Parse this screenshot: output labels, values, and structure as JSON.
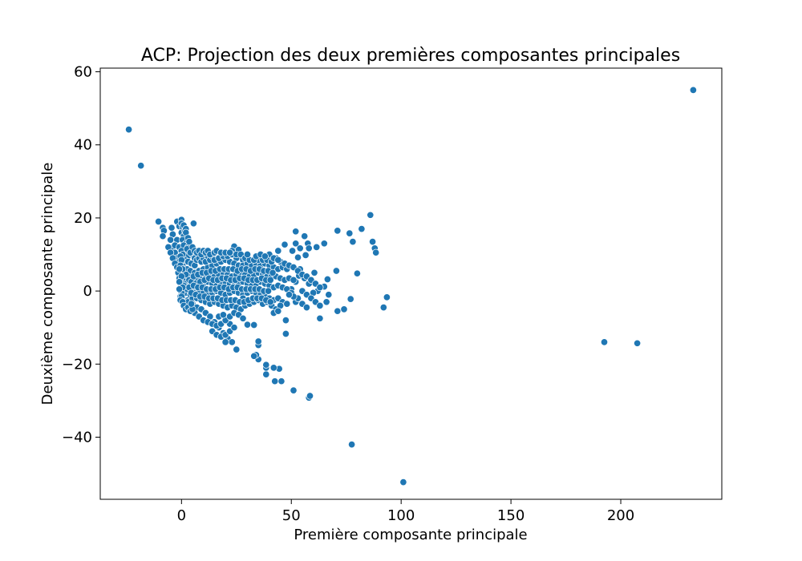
{
  "chart_data": {
    "type": "scatter",
    "title": "ACP: Projection des deux premières composantes principales",
    "xlabel": "Première composante principale",
    "ylabel": "Deuxième composante principale",
    "xlim": [
      -37,
      246
    ],
    "ylim": [
      -57,
      61
    ],
    "xticks": [
      0,
      50,
      100,
      150,
      200
    ],
    "yticks": [
      -40,
      -20,
      0,
      20,
      40,
      60
    ],
    "xtick_labels": [
      "0",
      "50",
      "100",
      "150",
      "200"
    ],
    "ytick_labels": [
      "−40",
      "−20",
      "0",
      "20",
      "40",
      "60"
    ],
    "grid": false,
    "marker_color": "#1f77b4",
    "marker_edge": "#ffffff",
    "points": [
      [
        -24,
        44.2
      ],
      [
        -18.5,
        34.3
      ],
      [
        233,
        55
      ],
      [
        192.5,
        -14
      ],
      [
        207.5,
        -14.3
      ],
      [
        101,
        -52.3
      ],
      [
        77.5,
        -42
      ],
      [
        58,
        -29.2
      ],
      [
        58.5,
        -28.7
      ],
      [
        51,
        -27.2
      ],
      [
        45.5,
        -24.7
      ],
      [
        42.5,
        -24.7
      ],
      [
        44.5,
        -21.3
      ],
      [
        42,
        -21
      ],
      [
        38.5,
        -22.8
      ],
      [
        38.5,
        -21
      ],
      [
        38.5,
        -20.2
      ],
      [
        35,
        -18.7
      ],
      [
        34,
        -17.5
      ],
      [
        33,
        -17.8
      ],
      [
        35,
        -14.8
      ],
      [
        35,
        -13.8
      ],
      [
        33,
        -9.3
      ],
      [
        30,
        -9.2
      ],
      [
        47.5,
        -11.7
      ],
      [
        47.5,
        -8
      ],
      [
        86,
        20.8
      ],
      [
        82,
        17
      ],
      [
        78,
        13.5
      ],
      [
        76.5,
        15.8
      ],
      [
        71,
        16.5
      ],
      [
        87,
        13.5
      ],
      [
        88,
        11.7
      ],
      [
        88.5,
        10.5
      ],
      [
        80,
        4.8
      ],
      [
        52,
        16.3
      ],
      [
        56,
        15
      ],
      [
        52,
        13
      ],
      [
        57.5,
        13
      ],
      [
        58,
        11.7
      ],
      [
        61.5,
        12
      ],
      [
        65,
        13
      ],
      [
        47,
        12.7
      ],
      [
        44,
        11
      ],
      [
        50.5,
        11
      ],
      [
        54,
        11.7
      ],
      [
        56.5,
        9.8
      ],
      [
        53,
        9.2
      ],
      [
        43,
        9
      ],
      [
        40,
        10
      ],
      [
        -10.5,
        19
      ],
      [
        -8.5,
        17.3
      ],
      [
        -8,
        16.5
      ],
      [
        -4.5,
        17.3
      ],
      [
        -4,
        15.5
      ],
      [
        -8.5,
        15
      ],
      [
        -2,
        19
      ],
      [
        -1,
        17.7
      ],
      [
        0,
        19.5
      ],
      [
        5.5,
        18.5
      ],
      [
        24,
        12.2
      ],
      [
        23,
        11
      ],
      [
        26,
        11.3
      ],
      [
        25,
        9
      ],
      [
        28,
        8.5
      ],
      [
        93.5,
        -1.7
      ],
      [
        92,
        -4.5
      ],
      [
        77,
        -2.2
      ],
      [
        74,
        -5
      ],
      [
        71,
        -5.5
      ],
      [
        70.5,
        5.5
      ],
      [
        66.5,
        3.2
      ],
      [
        65,
        1.2
      ],
      [
        67,
        -1
      ],
      [
        66,
        -3
      ],
      [
        63,
        -7.5
      ],
      [
        62,
        0
      ],
      [
        60,
        -0.5
      ],
      [
        58,
        2
      ],
      [
        56,
        3.5
      ],
      [
        60.5,
        5
      ],
      [
        54,
        6
      ],
      [
        53.5,
        4.2
      ],
      [
        52,
        2.5
      ],
      [
        50,
        0.5
      ],
      [
        -5,
        14
      ],
      [
        -4,
        12
      ],
      [
        -3,
        10.5
      ],
      [
        -2,
        9
      ],
      [
        -1,
        8
      ],
      [
        0.5,
        7
      ],
      [
        1,
        6
      ],
      [
        0,
        5
      ],
      [
        -1,
        4
      ],
      [
        0.5,
        3
      ],
      [
        -0.5,
        2
      ],
      [
        0,
        1
      ],
      [
        0.5,
        0
      ],
      [
        1,
        -1
      ],
      [
        0.5,
        -2
      ],
      [
        1.5,
        -3
      ],
      [
        3,
        -2.5
      ],
      [
        5,
        -3.5
      ],
      [
        7,
        -4.5
      ],
      [
        9,
        -5
      ],
      [
        11,
        -6
      ],
      [
        13,
        -7
      ],
      [
        15,
        -8.5
      ],
      [
        17,
        -10
      ],
      [
        19,
        -11.5
      ],
      [
        21,
        -13
      ],
      [
        23,
        -14
      ],
      [
        25,
        -16
      ],
      [
        20,
        -14
      ],
      [
        22,
        -9
      ],
      [
        -2,
        14
      ],
      [
        -3,
        12.5
      ],
      [
        -1,
        12
      ],
      [
        1,
        11
      ],
      [
        2,
        10
      ],
      [
        3,
        9.5
      ],
      [
        1.5,
        8.5
      ],
      [
        3,
        8
      ],
      [
        4.5,
        7.5
      ],
      [
        6,
        7
      ],
      [
        2.5,
        6
      ],
      [
        4,
        5.5
      ],
      [
        6,
        5
      ],
      [
        8,
        5.5
      ],
      [
        10,
        6
      ],
      [
        12,
        6.5
      ],
      [
        14,
        7
      ],
      [
        16,
        7.5
      ],
      [
        18,
        8
      ],
      [
        20,
        8.5
      ],
      [
        22,
        8
      ],
      [
        24,
        7.5
      ],
      [
        26,
        7
      ],
      [
        28,
        7
      ],
      [
        30,
        7.5
      ],
      [
        32,
        7
      ],
      [
        34,
        7.5
      ],
      [
        36,
        7
      ],
      [
        38,
        7.5
      ],
      [
        40,
        7
      ],
      [
        42,
        6.5
      ],
      [
        44,
        6
      ],
      [
        46,
        6.5
      ],
      [
        48,
        6
      ],
      [
        35,
        8.5
      ],
      [
        3,
        4
      ],
      [
        5,
        3.5
      ],
      [
        7,
        3
      ],
      [
        9,
        3.5
      ],
      [
        11,
        4
      ],
      [
        13,
        4.5
      ],
      [
        15,
        4
      ],
      [
        17,
        4.5
      ],
      [
        19,
        5
      ],
      [
        21,
        4.5
      ],
      [
        23,
        4
      ],
      [
        25,
        4.5
      ],
      [
        27,
        5
      ],
      [
        29,
        4.5
      ],
      [
        31,
        4
      ],
      [
        33,
        4.5
      ],
      [
        35,
        5
      ],
      [
        37,
        4.5
      ],
      [
        39,
        4
      ],
      [
        41,
        4.5
      ],
      [
        43,
        4
      ],
      [
        45,
        3.5
      ],
      [
        47,
        3
      ],
      [
        49,
        3.5
      ],
      [
        51,
        3
      ],
      [
        2,
        2
      ],
      [
        4,
        1.5
      ],
      [
        6,
        1
      ],
      [
        8,
        1.5
      ],
      [
        10,
        2
      ],
      [
        12,
        2.5
      ],
      [
        14,
        2
      ],
      [
        16,
        1.5
      ],
      [
        18,
        2
      ],
      [
        20,
        2.5
      ],
      [
        22,
        2
      ],
      [
        24,
        1.5
      ],
      [
        26,
        2
      ],
      [
        28,
        2.5
      ],
      [
        30,
        2
      ],
      [
        32,
        1.5
      ],
      [
        34,
        2
      ],
      [
        36,
        2.5
      ],
      [
        38,
        2
      ],
      [
        40,
        1.5
      ],
      [
        42,
        1
      ],
      [
        44,
        1.5
      ],
      [
        46,
        1
      ],
      [
        48,
        0.5
      ],
      [
        50,
        -0.5
      ],
      [
        2,
        -0.5
      ],
      [
        4,
        -1
      ],
      [
        6,
        -0.5
      ],
      [
        8,
        0
      ],
      [
        10,
        -0.5
      ],
      [
        12,
        -1
      ],
      [
        14,
        -0.5
      ],
      [
        16,
        0
      ],
      [
        18,
        -0.5
      ],
      [
        20,
        -1
      ],
      [
        22,
        -0.5
      ],
      [
        24,
        0
      ],
      [
        26,
        -0.5
      ],
      [
        28,
        -1
      ],
      [
        30,
        -0.5
      ],
      [
        32,
        0
      ],
      [
        34,
        -0.5
      ],
      [
        36,
        -1
      ],
      [
        38,
        -1.5
      ],
      [
        40,
        -2
      ],
      [
        42,
        -2.5
      ],
      [
        44,
        -2
      ],
      [
        46,
        -3
      ],
      [
        48,
        -3.5
      ],
      [
        52,
        -3
      ],
      [
        3,
        -3
      ],
      [
        5,
        -2
      ],
      [
        7,
        -2
      ],
      [
        9,
        -2.5
      ],
      [
        11,
        -3
      ],
      [
        13,
        -3.5
      ],
      [
        15,
        -3
      ],
      [
        17,
        -3.5
      ],
      [
        19,
        -4
      ],
      [
        21,
        -4.5
      ],
      [
        23,
        -4
      ],
      [
        25,
        -4.5
      ],
      [
        27,
        -5
      ],
      [
        29,
        -4
      ],
      [
        31,
        -3.5
      ],
      [
        33,
        -3
      ],
      [
        35,
        -2.5
      ],
      [
        37,
        -3.5
      ],
      [
        39,
        -3
      ],
      [
        41,
        -4
      ],
      [
        43,
        -5
      ],
      [
        45,
        -4
      ],
      [
        42,
        -6
      ],
      [
        44,
        -5.5
      ],
      [
        28,
        -2
      ],
      [
        6,
        -6
      ],
      [
        8,
        -7
      ],
      [
        10,
        -8
      ],
      [
        12,
        -8.5
      ],
      [
        14,
        -9
      ],
      [
        16,
        -9.5
      ],
      [
        18,
        -9
      ],
      [
        20,
        -8
      ],
      [
        22,
        -7
      ],
      [
        24,
        -6
      ],
      [
        26,
        -6.5
      ],
      [
        28,
        -7.5
      ],
      [
        14,
        -11
      ],
      [
        16,
        -12
      ],
      [
        18,
        -12.5
      ],
      [
        20,
        -12
      ],
      [
        22,
        -11
      ],
      [
        24,
        -10
      ],
      [
        17,
        -7
      ],
      [
        19,
        -6.5
      ],
      [
        -6,
        12
      ],
      [
        -5,
        10.5
      ],
      [
        -4,
        9
      ],
      [
        -3,
        7.5
      ],
      [
        -2,
        6.5
      ],
      [
        -1.5,
        5
      ],
      [
        -1,
        3.5
      ],
      [
        -0.5,
        2.5
      ],
      [
        0,
        -0.5
      ],
      [
        -0.5,
        -1.5
      ],
      [
        0,
        16
      ],
      [
        1,
        15
      ],
      [
        0.5,
        14
      ],
      [
        2,
        13
      ],
      [
        1,
        12.5
      ],
      [
        3,
        12
      ],
      [
        4,
        11
      ],
      [
        5,
        10
      ],
      [
        6,
        9
      ],
      [
        7,
        8.5
      ],
      [
        8,
        9
      ],
      [
        9,
        8
      ],
      [
        10,
        9
      ],
      [
        11,
        8
      ],
      [
        12,
        9.5
      ],
      [
        13,
        8.5
      ],
      [
        14,
        9.5
      ],
      [
        15,
        8.5
      ],
      [
        17,
        9
      ],
      [
        19,
        9.5
      ],
      [
        21,
        9.5
      ],
      [
        23,
        10
      ],
      [
        25,
        10
      ],
      [
        27,
        10
      ],
      [
        29,
        9
      ],
      [
        31,
        8.5
      ],
      [
        33,
        8.5
      ],
      [
        37,
        8.5
      ],
      [
        39,
        8.5
      ],
      [
        41,
        8
      ],
      [
        45,
        8
      ],
      [
        47,
        7.5
      ],
      [
        49,
        7
      ],
      [
        51,
        6.5
      ],
      [
        53,
        5.5
      ],
      [
        55,
        4.5
      ],
      [
        57,
        4
      ],
      [
        59,
        3
      ],
      [
        61,
        2
      ],
      [
        63,
        1
      ],
      [
        55,
        0
      ],
      [
        57,
        -1
      ],
      [
        59,
        -2
      ],
      [
        61,
        -3
      ],
      [
        63,
        -4
      ],
      [
        55,
        -3.5
      ],
      [
        57,
        -4.5
      ],
      [
        53,
        -2
      ],
      [
        51,
        -1.5
      ],
      [
        49,
        -1
      ],
      [
        2,
        4.5
      ],
      [
        3.5,
        3
      ],
      [
        4.5,
        2.5
      ],
      [
        5.5,
        4
      ],
      [
        6.5,
        2
      ],
      [
        7.5,
        4.5
      ],
      [
        8.5,
        2.5
      ],
      [
        9.5,
        5
      ],
      [
        10.5,
        3
      ],
      [
        11.5,
        5
      ],
      [
        12.5,
        3.5
      ],
      [
        13.5,
        5.5
      ],
      [
        14.5,
        3
      ],
      [
        15.5,
        5.5
      ],
      [
        16.5,
        3
      ],
      [
        17.5,
        6
      ],
      [
        18.5,
        3.5
      ],
      [
        19.5,
        6
      ],
      [
        20.5,
        3.5
      ],
      [
        21.5,
        6
      ],
      [
        22.5,
        3
      ],
      [
        23.5,
        6
      ],
      [
        24.5,
        3
      ],
      [
        25.5,
        5.5
      ],
      [
        26.5,
        3.5
      ],
      [
        27.5,
        6
      ],
      [
        28.5,
        3.5
      ],
      [
        29.5,
        6
      ],
      [
        30.5,
        3
      ],
      [
        31.5,
        5.5
      ],
      [
        32.5,
        3
      ],
      [
        33.5,
        6
      ],
      [
        34.5,
        3
      ],
      [
        35.5,
        6
      ],
      [
        36.5,
        3.5
      ],
      [
        37.5,
        5.5
      ],
      [
        38.5,
        3
      ],
      [
        39.5,
        5.5
      ],
      [
        40.5,
        3
      ],
      [
        41.5,
        5
      ],
      [
        1,
        1.5
      ],
      [
        2.5,
        0.5
      ],
      [
        3.5,
        1
      ],
      [
        4.5,
        -0.5
      ],
      [
        5.5,
        1.5
      ],
      [
        6.5,
        -1
      ],
      [
        7.5,
        1
      ],
      [
        8.5,
        -1.5
      ],
      [
        9.5,
        1
      ],
      [
        10.5,
        -1.5
      ],
      [
        11.5,
        0.5
      ],
      [
        12.5,
        -2
      ],
      [
        13.5,
        0.5
      ],
      [
        14.5,
        -2
      ],
      [
        15.5,
        0.5
      ],
      [
        16.5,
        -2
      ],
      [
        17.5,
        1
      ],
      [
        18.5,
        -2.5
      ],
      [
        19.5,
        1
      ],
      [
        20.5,
        -2.5
      ],
      [
        21.5,
        0.5
      ],
      [
        22.5,
        -2.5
      ],
      [
        23.5,
        1
      ],
      [
        24.5,
        -2.5
      ],
      [
        25.5,
        1
      ],
      [
        26.5,
        -3
      ],
      [
        27.5,
        0.5
      ],
      [
        28.5,
        -3
      ],
      [
        29.5,
        0.5
      ],
      [
        30.5,
        -2.5
      ],
      [
        31.5,
        0.5
      ],
      [
        32.5,
        -2
      ],
      [
        33.5,
        0.5
      ],
      [
        34.5,
        -2
      ],
      [
        35.5,
        0.5
      ],
      [
        36.5,
        -2
      ],
      [
        37.5,
        0
      ],
      [
        38.5,
        -2.5
      ],
      [
        39.5,
        0
      ],
      [
        40.5,
        -3
      ],
      [
        0,
        18.5
      ],
      [
        0.5,
        17.5
      ],
      [
        1,
        18
      ],
      [
        1.5,
        16.5
      ],
      [
        2,
        17
      ],
      [
        0,
        11
      ],
      [
        0.5,
        10
      ],
      [
        -0.5,
        9.5
      ],
      [
        0,
        8.5
      ],
      [
        -0.5,
        7
      ],
      [
        0.5,
        6
      ],
      [
        -1,
        6
      ],
      [
        0,
        4
      ],
      [
        -1,
        2.5
      ],
      [
        0.5,
        1
      ],
      [
        -1,
        0.5
      ],
      [
        0,
        -1.5
      ],
      [
        -0.5,
        -2.5
      ],
      [
        0.5,
        -3
      ],
      [
        1,
        -4
      ],
      [
        2,
        -5
      ],
      [
        3,
        -4.5
      ],
      [
        4,
        -5.5
      ],
      [
        5,
        -5
      ],
      [
        4.5,
        -3.5
      ],
      [
        2,
        16
      ],
      [
        3,
        14.5
      ],
      [
        3.5,
        13.5
      ],
      [
        2.5,
        11.5
      ],
      [
        4,
        10.5
      ],
      [
        5,
        12
      ],
      [
        6,
        11
      ],
      [
        7,
        10.5
      ],
      [
        8,
        11
      ],
      [
        9,
        10
      ],
      [
        10,
        11
      ],
      [
        11,
        10.5
      ],
      [
        12,
        11
      ],
      [
        13,
        10
      ],
      [
        15,
        10.5
      ],
      [
        16,
        11
      ],
      [
        18,
        10.5
      ],
      [
        20,
        10.5
      ],
      [
        22,
        10.5
      ],
      [
        30,
        10
      ],
      [
        34,
        9.5
      ],
      [
        36,
        10
      ],
      [
        38,
        9.5
      ],
      [
        42,
        9
      ],
      [
        44,
        8.5
      ]
    ]
  }
}
